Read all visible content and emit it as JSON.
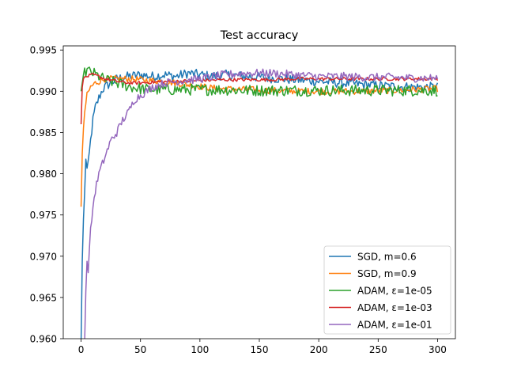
{
  "chart_data": {
    "type": "line",
    "title": "Test accuracy",
    "xlabel": "",
    "ylabel": "",
    "xlim": [
      -15,
      315
    ],
    "ylim": [
      0.96,
      0.9955
    ],
    "xticks": [
      0,
      50,
      100,
      150,
      200,
      250,
      300
    ],
    "xtick_labels": [
      "0",
      "50",
      "100",
      "150",
      "200",
      "250",
      "300"
    ],
    "yticks": [
      0.96,
      0.965,
      0.97,
      0.975,
      0.98,
      0.985,
      0.99,
      0.995
    ],
    "ytick_labels": [
      "0.960",
      "0.965",
      "0.970",
      "0.975",
      "0.980",
      "0.985",
      "0.990",
      "0.995"
    ],
    "grid": false,
    "legend_position": "lower-right",
    "series": [
      {
        "name": "SGD, m=0.6",
        "color": "#1f77b4",
        "points": [
          [
            0,
            0.9595
          ],
          [
            1,
            0.9695
          ],
          [
            2,
            0.9745
          ],
          [
            3,
            0.9775
          ],
          [
            4,
            0.982
          ],
          [
            5,
            0.9805
          ],
          [
            6,
            0.981
          ],
          [
            8,
            0.984
          ],
          [
            10,
            0.9865
          ],
          [
            12,
            0.988
          ],
          [
            15,
            0.9892
          ],
          [
            18,
            0.9902
          ],
          [
            20,
            0.9905
          ],
          [
            25,
            0.991
          ],
          [
            30,
            0.9915
          ],
          [
            40,
            0.9918
          ],
          [
            50,
            0.992
          ],
          [
            60,
            0.9918
          ],
          [
            70,
            0.992
          ],
          [
            80,
            0.9918
          ],
          [
            90,
            0.9922
          ],
          [
            100,
            0.992
          ],
          [
            110,
            0.9918
          ],
          [
            120,
            0.992
          ],
          [
            140,
            0.9918
          ],
          [
            160,
            0.9916
          ],
          [
            180,
            0.9914
          ],
          [
            200,
            0.9912
          ],
          [
            220,
            0.991
          ],
          [
            240,
            0.9908
          ],
          [
            260,
            0.9906
          ],
          [
            280,
            0.9905
          ],
          [
            300,
            0.9905
          ]
        ],
        "noise": 0.0006
      },
      {
        "name": "SGD, m=0.9",
        "color": "#ff7f0e",
        "points": [
          [
            0,
            0.976
          ],
          [
            1,
            0.9825
          ],
          [
            2,
            0.9855
          ],
          [
            3,
            0.9875
          ],
          [
            5,
            0.9895
          ],
          [
            8,
            0.9905
          ],
          [
            12,
            0.991
          ],
          [
            20,
            0.9915
          ],
          [
            30,
            0.9915
          ],
          [
            40,
            0.9915
          ],
          [
            50,
            0.9914
          ],
          [
            60,
            0.9913
          ],
          [
            70,
            0.9912
          ],
          [
            80,
            0.991
          ],
          [
            90,
            0.9908
          ],
          [
            100,
            0.9906
          ],
          [
            110,
            0.9904
          ],
          [
            120,
            0.9903
          ],
          [
            140,
            0.9902
          ],
          [
            160,
            0.9901
          ],
          [
            180,
            0.99
          ],
          [
            200,
            0.99
          ],
          [
            220,
            0.99
          ],
          [
            240,
            0.99
          ],
          [
            260,
            0.9901
          ],
          [
            280,
            0.9902
          ],
          [
            300,
            0.9903
          ]
        ],
        "noise": 0.0004
      },
      {
        "name": "ADAM, ε=1e-05",
        "color": "#2ca02c",
        "points": [
          [
            0,
            0.99
          ],
          [
            2,
            0.992
          ],
          [
            5,
            0.9925
          ],
          [
            10,
            0.9922
          ],
          [
            15,
            0.9918
          ],
          [
            20,
            0.9914
          ],
          [
            30,
            0.991
          ],
          [
            40,
            0.9906
          ],
          [
            50,
            0.9903
          ],
          [
            60,
            0.9902
          ],
          [
            70,
            0.9902
          ],
          [
            80,
            0.9902
          ],
          [
            100,
            0.9902
          ],
          [
            120,
            0.9902
          ],
          [
            140,
            0.9901
          ],
          [
            160,
            0.9901
          ],
          [
            180,
            0.9901
          ],
          [
            200,
            0.9901
          ],
          [
            220,
            0.9901
          ],
          [
            240,
            0.9901
          ],
          [
            260,
            0.9901
          ],
          [
            280,
            0.9901
          ],
          [
            300,
            0.9901
          ]
        ],
        "noise": 0.0007
      },
      {
        "name": "ADAM, ε=1e-03",
        "color": "#d62728",
        "points": [
          [
            0,
            0.986
          ],
          [
            1,
            0.9905
          ],
          [
            2,
            0.9915
          ],
          [
            5,
            0.9918
          ],
          [
            10,
            0.992
          ],
          [
            15,
            0.9918
          ],
          [
            20,
            0.9915
          ],
          [
            30,
            0.9912
          ],
          [
            40,
            0.991
          ],
          [
            50,
            0.991
          ],
          [
            60,
            0.9911
          ],
          [
            80,
            0.9912
          ],
          [
            100,
            0.9913
          ],
          [
            120,
            0.9914
          ],
          [
            140,
            0.9914
          ],
          [
            160,
            0.9914
          ],
          [
            180,
            0.9915
          ],
          [
            200,
            0.9915
          ],
          [
            220,
            0.9915
          ],
          [
            240,
            0.9915
          ],
          [
            260,
            0.9915
          ],
          [
            280,
            0.9915
          ],
          [
            300,
            0.9915
          ]
        ],
        "noise": 0.0002
      },
      {
        "name": "ADAM, ε=1e-01",
        "color": "#9467bd",
        "points": [
          [
            0,
            0.9595
          ],
          [
            3,
            0.9595
          ],
          [
            4,
            0.966
          ],
          [
            5,
            0.969
          ],
          [
            6,
            0.9685
          ],
          [
            8,
            0.973
          ],
          [
            10,
            0.976
          ],
          [
            12,
            0.978
          ],
          [
            15,
            0.98
          ],
          [
            20,
            0.982
          ],
          [
            25,
            0.984
          ],
          [
            30,
            0.985
          ],
          [
            35,
            0.9865
          ],
          [
            40,
            0.9875
          ],
          [
            45,
            0.989
          ],
          [
            50,
            0.9895
          ],
          [
            55,
            0.99
          ],
          [
            60,
            0.9905
          ],
          [
            70,
            0.991
          ],
          [
            80,
            0.9912
          ],
          [
            100,
            0.9915
          ],
          [
            120,
            0.992
          ],
          [
            140,
            0.9922
          ],
          [
            160,
            0.9922
          ],
          [
            180,
            0.992
          ],
          [
            200,
            0.9918
          ],
          [
            220,
            0.9918
          ],
          [
            240,
            0.9917
          ],
          [
            260,
            0.9917
          ],
          [
            280,
            0.9916
          ],
          [
            300,
            0.9916
          ]
        ],
        "noise": 0.0005
      }
    ]
  }
}
